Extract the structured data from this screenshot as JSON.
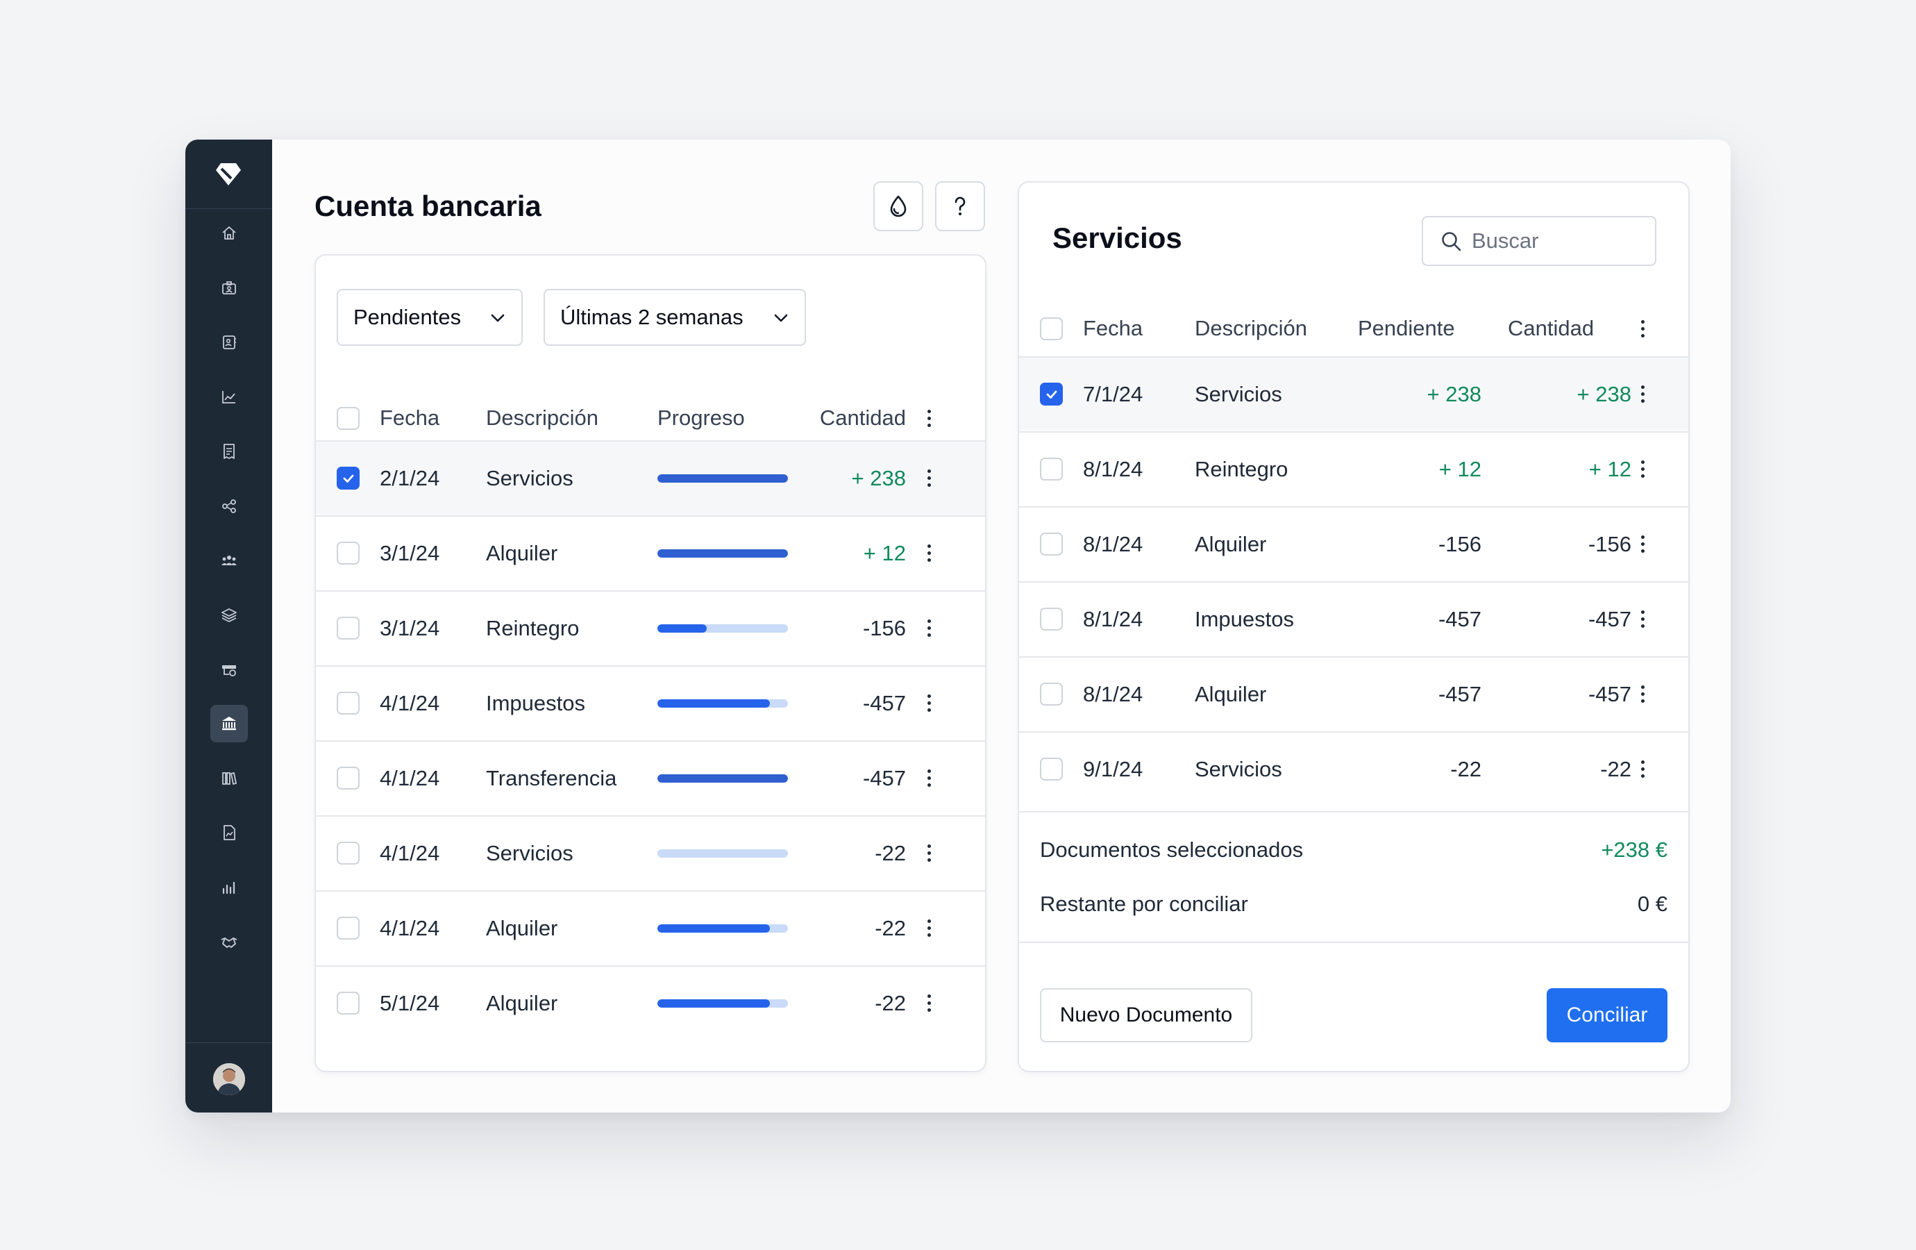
{
  "colors": {
    "sidebar_bg": "#1e2936",
    "accent": "#1f6ff0",
    "positive": "#108a5c",
    "progress_fill": "#2563eb",
    "progress_track": "#c9dbf8"
  },
  "sidebar": {
    "logo_icon": "diamond-logo",
    "items": [
      {
        "icon": "home-icon",
        "active": false
      },
      {
        "icon": "id-card-icon",
        "active": false
      },
      {
        "icon": "contact-book-icon",
        "active": false
      },
      {
        "icon": "chart-line-icon",
        "active": false
      },
      {
        "icon": "receipt-icon",
        "active": false
      },
      {
        "icon": "share-nodes-icon",
        "active": false
      },
      {
        "icon": "users-icon",
        "active": false
      },
      {
        "icon": "layers-icon",
        "active": false
      },
      {
        "icon": "inbox-tray-icon",
        "active": false
      },
      {
        "icon": "bank-icon",
        "active": true
      },
      {
        "icon": "books-icon",
        "active": false
      },
      {
        "icon": "document-chart-icon",
        "active": false
      },
      {
        "icon": "bar-chart-icon",
        "active": false
      },
      {
        "icon": "handshake-icon",
        "active": false
      }
    ],
    "avatar_icon": "user-avatar"
  },
  "left": {
    "title": "Cuenta bancaria",
    "toolbar_icons": [
      "drop-icon",
      "help-icon"
    ],
    "filters": {
      "status": "Pendientes",
      "range": "Últimas 2 semanas"
    },
    "columns": [
      "Fecha",
      "Descripción",
      "Progreso",
      "Cantidad"
    ],
    "rows": [
      {
        "fecha": "2/1/24",
        "descripcion": "Servicios",
        "progreso": 1.0,
        "cantidad": "+ 238",
        "positive": true,
        "checked": true
      },
      {
        "fecha": "3/1/24",
        "descripcion": "Alquiler",
        "progreso": 1.0,
        "cantidad": "+ 12",
        "positive": true,
        "checked": false
      },
      {
        "fecha": "3/1/24",
        "descripcion": "Reintegro",
        "progreso": 0.38,
        "cantidad": "-156",
        "positive": false,
        "checked": false
      },
      {
        "fecha": "4/1/24",
        "descripcion": "Impuestos",
        "progreso": 0.86,
        "cantidad": "-457",
        "positive": false,
        "checked": false
      },
      {
        "fecha": "4/1/24",
        "descripcion": "Transferencia",
        "progreso": 1.0,
        "cantidad": "-457",
        "positive": false,
        "checked": false
      },
      {
        "fecha": "4/1/24",
        "descripcion": "Servicios",
        "progreso": 0.0,
        "cantidad": "-22",
        "positive": false,
        "checked": false
      },
      {
        "fecha": "4/1/24",
        "descripcion": "Alquiler",
        "progreso": 0.86,
        "cantidad": "-22",
        "positive": false,
        "checked": false
      },
      {
        "fecha": "5/1/24",
        "descripcion": "Alquiler",
        "progreso": 0.86,
        "cantidad": "-22",
        "positive": false,
        "checked": false
      }
    ]
  },
  "right": {
    "title": "Servicios",
    "search": {
      "placeholder": "Buscar"
    },
    "columns": [
      "Fecha",
      "Descripción",
      "Pendiente",
      "Cantidad"
    ],
    "rows": [
      {
        "fecha": "7/1/24",
        "descripcion": "Servicios",
        "pendiente": "+ 238",
        "cantidad": "+ 238",
        "positive": true,
        "checked": true
      },
      {
        "fecha": "8/1/24",
        "descripcion": "Reintegro",
        "pendiente": "+ 12",
        "cantidad": "+ 12",
        "positive": true,
        "checked": false
      },
      {
        "fecha": "8/1/24",
        "descripcion": "Alquiler",
        "pendiente": "-156",
        "cantidad": "-156",
        "positive": false,
        "checked": false
      },
      {
        "fecha": "8/1/24",
        "descripcion": "Impuestos",
        "pendiente": "-457",
        "cantidad": "-457",
        "positive": false,
        "checked": false
      },
      {
        "fecha": "8/1/24",
        "descripcion": "Alquiler",
        "pendiente": "-457",
        "cantidad": "-457",
        "positive": false,
        "checked": false
      },
      {
        "fecha": "9/1/24",
        "descripcion": "Servicios",
        "pendiente": "-22",
        "cantidad": "-22",
        "positive": false,
        "checked": false
      }
    ],
    "summary": {
      "selected_label": "Documentos seleccionados",
      "selected_value": "+238 €",
      "remaining_label": "Restante por conciliar",
      "remaining_value": "0 €"
    },
    "buttons": {
      "new_document": "Nuevo Documento",
      "reconcile": "Conciliar"
    }
  }
}
